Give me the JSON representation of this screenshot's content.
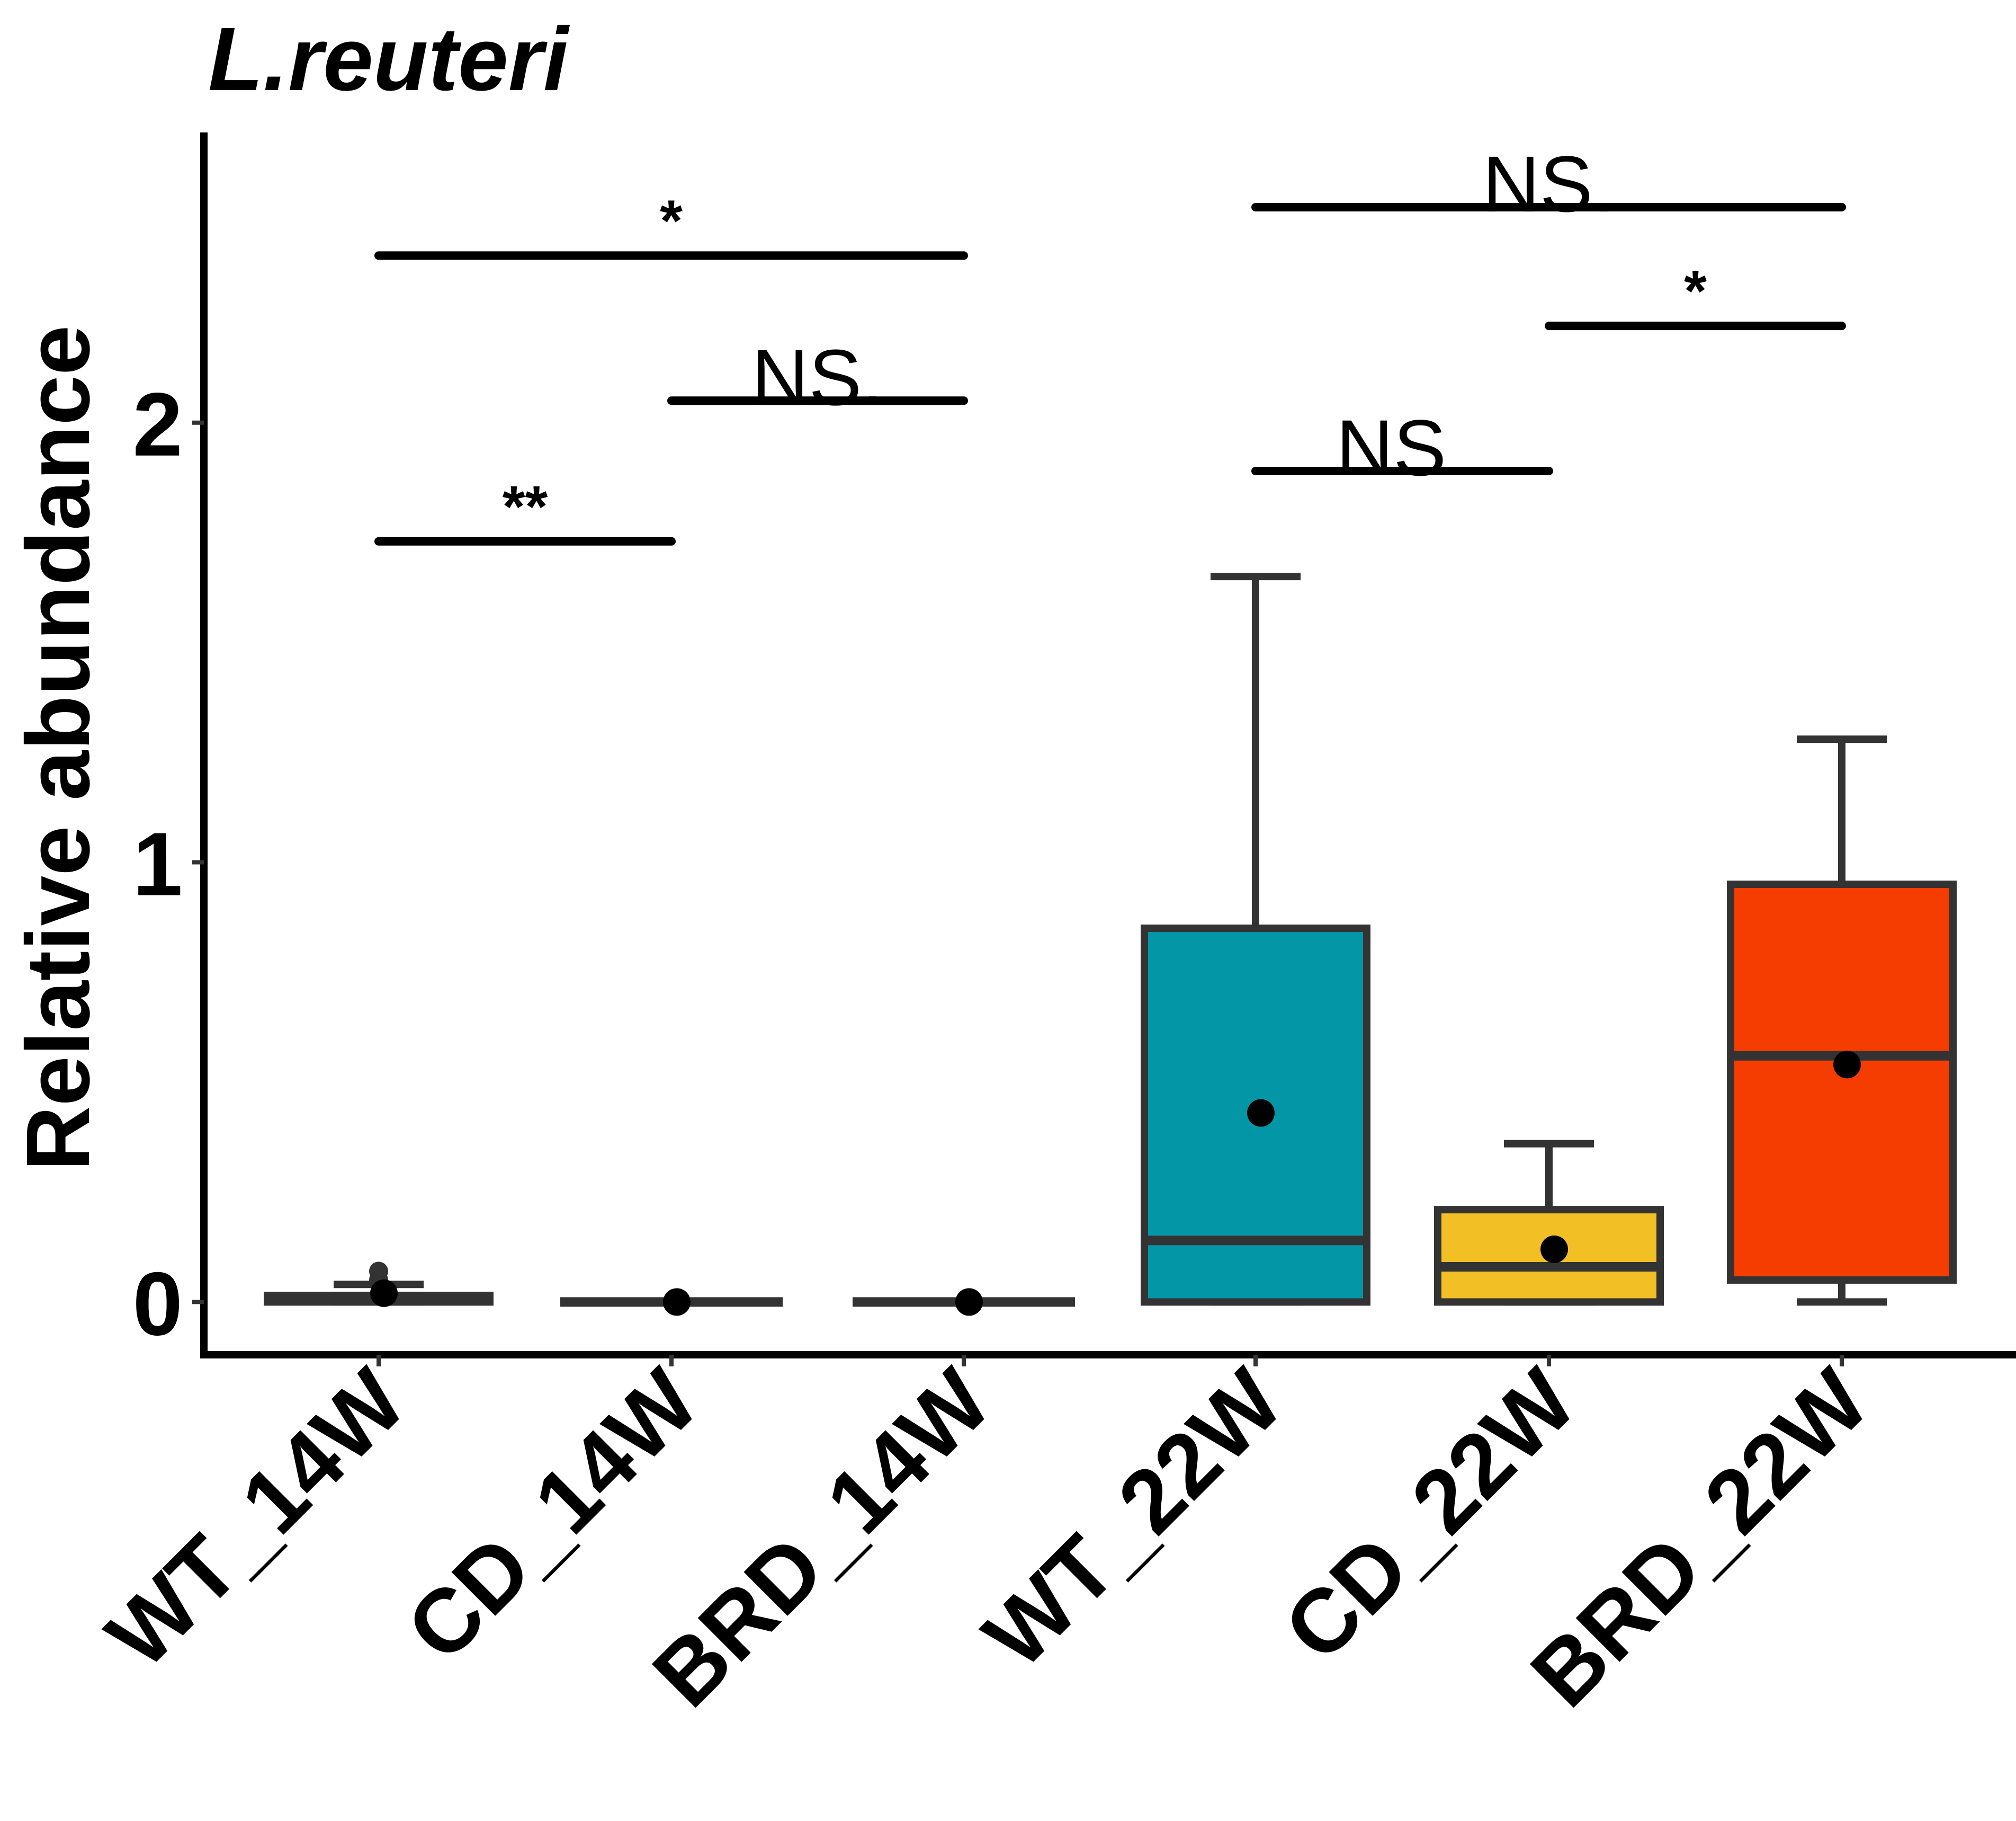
{
  "chart_data": {
    "type": "box",
    "title": "L.reuteri",
    "xlabel": "",
    "ylabel": "Relative abundance",
    "ylim": [
      -0.12,
      2.66
    ],
    "yticks": [
      0,
      1,
      2
    ],
    "categories": [
      "WT_14W",
      "CD_14W",
      "BRD_14W",
      "WT_22W",
      "CD_22W",
      "BRD_22W"
    ],
    "boxes": [
      {
        "category": "WT_14W",
        "whisker_low": 0.0,
        "q1": 0.0,
        "median": 0.005,
        "q3": 0.015,
        "whisker_high": 0.04,
        "mean": 0.02,
        "outliers": [
          0.05,
          0.07
        ],
        "color": "#333333"
      },
      {
        "category": "CD_14W",
        "whisker_low": 0.0,
        "q1": 0.0,
        "median": 0.0,
        "q3": 0.0,
        "whisker_high": 0.0,
        "mean": 0.0,
        "outliers": [],
        "color": "#333333"
      },
      {
        "category": "BRD_14W",
        "whisker_low": 0.0,
        "q1": 0.0,
        "median": 0.0,
        "q3": 0.0,
        "whisker_high": 0.0,
        "mean": 0.0,
        "outliers": [],
        "color": "#333333"
      },
      {
        "category": "WT_22W",
        "whisker_low": 0.0,
        "q1": 0.0,
        "median": 0.14,
        "q3": 0.85,
        "whisker_high": 1.65,
        "mean": 0.43,
        "outliers": [],
        "color": "#0396A6"
      },
      {
        "category": "CD_22W",
        "whisker_low": 0.0,
        "q1": 0.0,
        "median": 0.08,
        "q3": 0.21,
        "whisker_high": 0.36,
        "mean": 0.12,
        "outliers": [],
        "color": "#F2C025"
      },
      {
        "category": "BRD_22W",
        "whisker_low": 0.0,
        "q1": 0.05,
        "median": 0.56,
        "q3": 0.95,
        "whisker_high": 1.28,
        "mean": 0.54,
        "outliers": [],
        "color": "#F53D02"
      }
    ],
    "significance": [
      {
        "from": "WT_14W",
        "to": "CD_14W",
        "y": 1.73,
        "label": "**"
      },
      {
        "from": "CD_14W",
        "to": "BRD_14W",
        "y": 2.05,
        "label": "NS."
      },
      {
        "from": "WT_14W",
        "to": "BRD_14W",
        "y": 2.38,
        "label": "*"
      },
      {
        "from": "WT_22W",
        "to": "CD_22W",
        "y": 1.89,
        "label": "NS."
      },
      {
        "from": "CD_22W",
        "to": "BRD_22W",
        "y": 2.22,
        "label": "*"
      },
      {
        "from": "WT_22W",
        "to": "BRD_22W",
        "y": 2.49,
        "label": "NS."
      }
    ],
    "grid": false,
    "legend": "none"
  }
}
